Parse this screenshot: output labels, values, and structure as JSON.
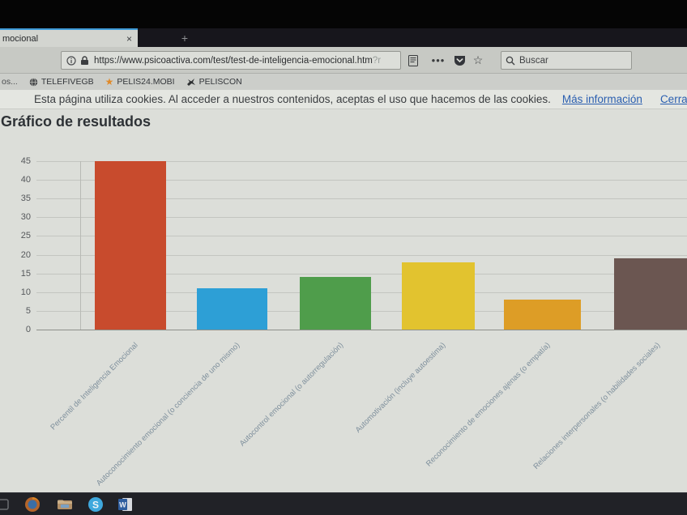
{
  "browser": {
    "tab": {
      "title": "mocional",
      "close_glyph": "×",
      "newtab_glyph": "+"
    },
    "toolbar": {
      "url": "https://www.psicoactiva.com/test/test-de-inteligencia-emocional.htm",
      "url_suffix": "?r",
      "pageactions_glyph": "•••",
      "star_glyph": "☆",
      "search_placeholder": "Buscar"
    },
    "bookmarks": {
      "overflow_label": "os...",
      "items": [
        {
          "label": "TELEFIVEGB",
          "icon": "globe-icon"
        },
        {
          "label": "PELIS24.MOBI",
          "icon": "star-icon"
        },
        {
          "label": "PELISCON",
          "icon": "peliscon-icon"
        }
      ]
    }
  },
  "page": {
    "cookiebar": {
      "text": "Esta página utiliza cookies. Al acceder a nuestros contenidos, aceptas el uso que hacemos de las cookies.",
      "more_info_label": "Más información",
      "close_label": "Cerrar"
    },
    "title": "Gráfico de resultados"
  },
  "chart_data": {
    "type": "bar",
    "title": "Gráfico de resultados",
    "categories": [
      "Percentil de Inteligencia Emocional",
      "Autoconocimiento emocional (o conciencia de uno mismo)",
      "Autocontrol emocional (o autorregulación)",
      "Automotivación (incluye autoestima)",
      "Reconocimiento de emociones ajenas (o empatía)",
      "Relaciones interpersonales (o habilidades sociales)"
    ],
    "values": [
      45,
      11,
      14,
      18,
      8,
      19
    ],
    "colors": [
      "#c84b2d",
      "#2d9fd6",
      "#4f9d4b",
      "#e2c32f",
      "#dd9d26",
      "#6b5651"
    ],
    "xlabel": "",
    "ylabel": "",
    "ylim": [
      0,
      45
    ],
    "yticks": [
      0,
      5,
      10,
      15,
      20,
      25,
      30,
      35,
      40,
      45
    ],
    "grid": true,
    "legend": false,
    "x_label_rotation": -45
  },
  "taskbar": {
    "icons": [
      "start",
      "firefox",
      "file-explorer",
      "skype",
      "word"
    ]
  }
}
